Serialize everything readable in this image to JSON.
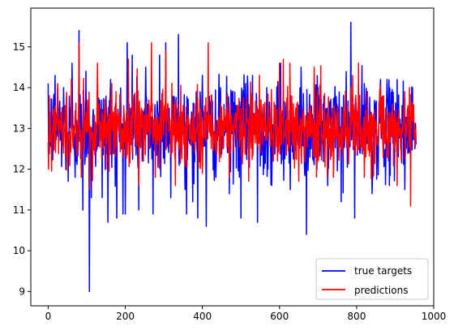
{
  "chart_data": {
    "type": "line",
    "title": "",
    "xlabel": "",
    "ylabel": "",
    "xlim": [
      -45,
      1000
    ],
    "ylim": [
      8.65,
      15.95
    ],
    "x_ticks": [
      0,
      200,
      400,
      600,
      800,
      1000
    ],
    "y_ticks": [
      9,
      10,
      11,
      12,
      13,
      14,
      15
    ],
    "legend_position": "lower-right",
    "n_points": 955,
    "series": [
      {
        "name": "true targets",
        "color": "#0000ff",
        "baseline": 13.0,
        "noise_sd": 0.55,
        "key_points": [
          {
            "x": 0,
            "y": 14.1
          },
          {
            "x": 5,
            "y": 12.6
          },
          {
            "x": 18,
            "y": 14.3
          },
          {
            "x": 40,
            "y": 14.0
          },
          {
            "x": 52,
            "y": 11.7
          },
          {
            "x": 62,
            "y": 14.6
          },
          {
            "x": 70,
            "y": 11.8
          },
          {
            "x": 80,
            "y": 15.4
          },
          {
            "x": 90,
            "y": 11.0
          },
          {
            "x": 98,
            "y": 14.4
          },
          {
            "x": 107,
            "y": 9.0
          },
          {
            "x": 112,
            "y": 11.3
          },
          {
            "x": 128,
            "y": 14.0
          },
          {
            "x": 140,
            "y": 11.3
          },
          {
            "x": 155,
            "y": 10.7
          },
          {
            "x": 162,
            "y": 14.2
          },
          {
            "x": 178,
            "y": 10.8
          },
          {
            "x": 200,
            "y": 10.9
          },
          {
            "x": 205,
            "y": 15.1
          },
          {
            "x": 218,
            "y": 14.8
          },
          {
            "x": 235,
            "y": 11.0
          },
          {
            "x": 253,
            "y": 14.5
          },
          {
            "x": 272,
            "y": 10.9
          },
          {
            "x": 289,
            "y": 14.8
          },
          {
            "x": 305,
            "y": 15.1
          },
          {
            "x": 318,
            "y": 11.3
          },
          {
            "x": 338,
            "y": 15.3
          },
          {
            "x": 355,
            "y": 11.5
          },
          {
            "x": 375,
            "y": 11.2
          },
          {
            "x": 388,
            "y": 10.8
          },
          {
            "x": 400,
            "y": 14.3
          },
          {
            "x": 410,
            "y": 10.6
          },
          {
            "x": 435,
            "y": 11.8
          },
          {
            "x": 470,
            "y": 11.4
          },
          {
            "x": 500,
            "y": 10.8
          },
          {
            "x": 512,
            "y": 14.1
          },
          {
            "x": 530,
            "y": 14.3
          },
          {
            "x": 543,
            "y": 10.7
          },
          {
            "x": 567,
            "y": 14.0
          },
          {
            "x": 580,
            "y": 11.6
          },
          {
            "x": 603,
            "y": 14.6
          },
          {
            "x": 628,
            "y": 11.5
          },
          {
            "x": 656,
            "y": 14.5
          },
          {
            "x": 670,
            "y": 10.4
          },
          {
            "x": 700,
            "y": 14.0
          },
          {
            "x": 725,
            "y": 11.6
          },
          {
            "x": 760,
            "y": 11.2
          },
          {
            "x": 785,
            "y": 15.6
          },
          {
            "x": 795,
            "y": 10.8
          },
          {
            "x": 820,
            "y": 14.1
          },
          {
            "x": 840,
            "y": 11.4
          },
          {
            "x": 862,
            "y": 14.2
          },
          {
            "x": 885,
            "y": 11.6
          },
          {
            "x": 905,
            "y": 14.2
          },
          {
            "x": 925,
            "y": 11.5
          },
          {
            "x": 945,
            "y": 14.0
          },
          {
            "x": 954,
            "y": 12.6
          }
        ]
      },
      {
        "name": "predictions",
        "color": "#ff0000",
        "baseline": 13.0,
        "noise_sd": 0.45,
        "key_points": [
          {
            "x": 3,
            "y": 13.8
          },
          {
            "x": 8,
            "y": 12.7
          },
          {
            "x": 25,
            "y": 14.1
          },
          {
            "x": 45,
            "y": 12.3
          },
          {
            "x": 60,
            "y": 14.2
          },
          {
            "x": 80,
            "y": 15.1
          },
          {
            "x": 86,
            "y": 11.8
          },
          {
            "x": 108,
            "y": 11.5
          },
          {
            "x": 128,
            "y": 14.6
          },
          {
            "x": 150,
            "y": 12.0
          },
          {
            "x": 165,
            "y": 14.1
          },
          {
            "x": 208,
            "y": 14.7
          },
          {
            "x": 235,
            "y": 11.6
          },
          {
            "x": 268,
            "y": 15.1
          },
          {
            "x": 278,
            "y": 11.8
          },
          {
            "x": 305,
            "y": 14.9
          },
          {
            "x": 330,
            "y": 11.6
          },
          {
            "x": 400,
            "y": 11.9
          },
          {
            "x": 415,
            "y": 15.1
          },
          {
            "x": 470,
            "y": 11.8
          },
          {
            "x": 520,
            "y": 11.7
          },
          {
            "x": 548,
            "y": 14.3
          },
          {
            "x": 600,
            "y": 14.6
          },
          {
            "x": 627,
            "y": 14.6
          },
          {
            "x": 650,
            "y": 11.7
          },
          {
            "x": 690,
            "y": 14.5
          },
          {
            "x": 740,
            "y": 11.8
          },
          {
            "x": 790,
            "y": 14.3
          },
          {
            "x": 805,
            "y": 14.6
          },
          {
            "x": 820,
            "y": 11.8
          },
          {
            "x": 870,
            "y": 13.8
          },
          {
            "x": 905,
            "y": 11.6
          },
          {
            "x": 925,
            "y": 13.9
          },
          {
            "x": 940,
            "y": 11.1
          },
          {
            "x": 954,
            "y": 12.8
          }
        ]
      }
    ]
  }
}
